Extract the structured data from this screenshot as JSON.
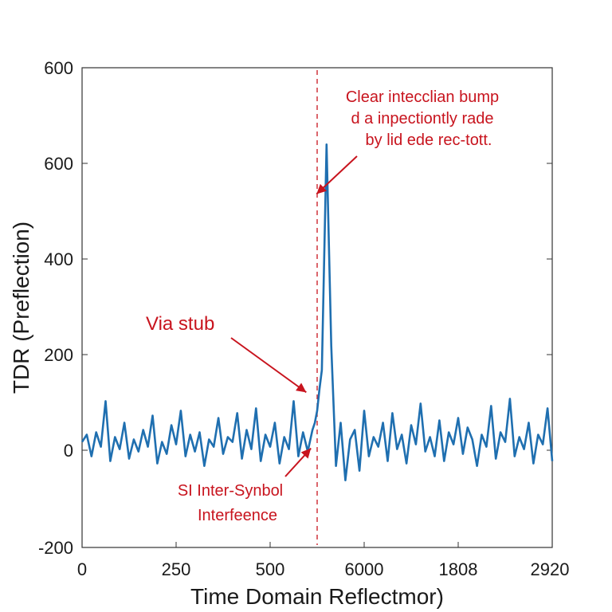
{
  "chart_data": {
    "type": "line",
    "title": "",
    "xlabel": "Time Domain Reflectmor)",
    "ylabel": "TDR (Preflection)",
    "y_ticks": [
      "600",
      "600",
      "400",
      "200",
      "0",
      "-200"
    ],
    "x_ticks": [
      "0",
      "250",
      "500",
      "6000",
      "1808",
      "2920"
    ],
    "ylim": [
      -200,
      800
    ],
    "series_color": "#1f6fb0",
    "annotation_color": "#c8141e",
    "marker_position": 500,
    "grid": false,
    "series": [
      {
        "x": [
          0,
          10,
          20,
          30,
          40,
          50,
          60,
          70,
          80,
          90,
          100,
          110,
          120,
          130,
          140,
          150,
          160,
          170,
          180,
          190,
          200,
          210,
          220,
          230,
          240,
          250,
          260,
          270,
          280,
          290,
          300,
          310,
          320,
          330,
          340,
          350,
          360,
          370,
          380,
          390,
          400,
          410,
          420,
          430,
          440,
          450,
          460,
          470,
          480,
          490,
          495,
          500,
          505,
          510,
          520,
          530,
          540,
          550,
          560,
          570,
          580,
          590,
          600,
          610,
          620,
          630,
          640,
          650,
          660,
          670,
          680,
          690,
          700,
          710,
          720,
          730,
          740,
          750,
          760,
          770,
          780,
          790,
          800,
          810,
          820,
          830,
          840,
          850,
          860,
          870,
          880,
          890,
          900,
          910,
          920,
          930,
          940,
          950,
          960,
          970,
          980,
          990,
          1000
        ],
        "y": [
          20,
          35,
          -10,
          40,
          10,
          105,
          -20,
          30,
          5,
          60,
          -15,
          25,
          0,
          45,
          10,
          75,
          -25,
          20,
          -5,
          55,
          15,
          85,
          -10,
          35,
          0,
          40,
          -30,
          25,
          10,
          70,
          -5,
          30,
          20,
          80,
          -15,
          45,
          5,
          90,
          -20,
          35,
          10,
          60,
          -25,
          30,
          5,
          105,
          -10,
          40,
          0,
          45,
          60,
          85,
          130,
          170,
          640,
          220,
          -30,
          60,
          -60,
          25,
          45,
          -40,
          85,
          -10,
          30,
          10,
          60,
          -20,
          80,
          5,
          35,
          -25,
          55,
          15,
          100,
          0,
          30,
          -10,
          65,
          -20,
          40,
          15,
          70,
          -5,
          50,
          25,
          -30,
          35,
          10,
          95,
          -15,
          40,
          20,
          110,
          -10,
          30,
          5,
          60,
          -25,
          35,
          15,
          90,
          -20
        ]
      }
    ],
    "annotations": [
      {
        "lines": [
          "Clear intecclian bump",
          "d a inpectiontly rade",
          "by lid ede rec-tott."
        ],
        "target_x": 497,
        "target_y": 550
      },
      {
        "text": "Via stub",
        "target_x": 470,
        "target_y": 130
      },
      {
        "lines": [
          "SI Inter-Synbol",
          "Interfeence"
        ],
        "target_x": 480,
        "target_y": 0
      }
    ]
  }
}
